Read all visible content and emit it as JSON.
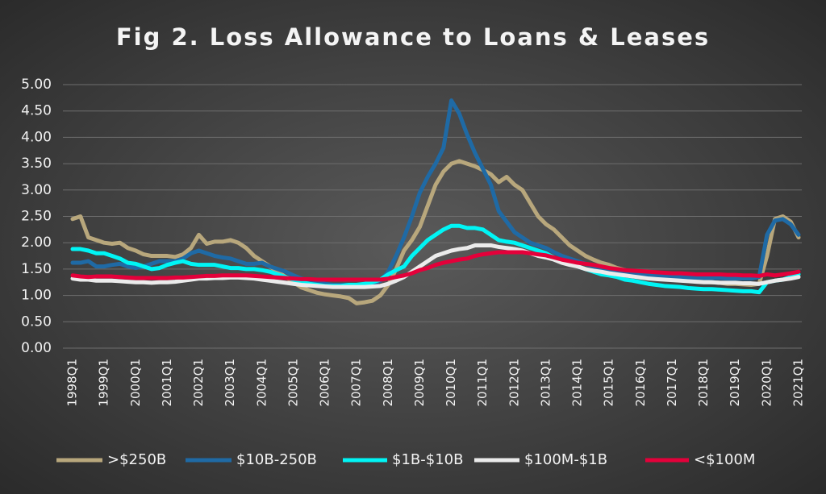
{
  "chart_data": {
    "type": "line",
    "title": "Fig 2. Loss Allowance to Loans & Leases",
    "categories": [
      "1998Q1",
      null,
      null,
      null,
      "1999Q1",
      null,
      null,
      null,
      "2000Q1",
      null,
      null,
      null,
      "2001Q1",
      null,
      null,
      null,
      "2002Q1",
      null,
      null,
      null,
      "2003Q1",
      null,
      null,
      null,
      "2004Q1",
      null,
      null,
      null,
      "2005Q1",
      null,
      null,
      null,
      "2006Q1",
      null,
      null,
      null,
      "2007Q1",
      null,
      null,
      null,
      "2008Q1",
      null,
      null,
      null,
      "2009Q1",
      null,
      null,
      null,
      "2010Q1",
      null,
      null,
      null,
      "2011Q1",
      null,
      null,
      null,
      "2012Q1",
      null,
      null,
      null,
      "2013Q1",
      null,
      null,
      null,
      "2014Q1",
      null,
      null,
      null,
      "2015Q1",
      null,
      null,
      null,
      "2016Q1",
      null,
      null,
      null,
      "2017Q1",
      null,
      null,
      null,
      "2018Q1",
      null,
      null,
      null,
      "2019Q1",
      null,
      null,
      null,
      "2020Q1",
      null,
      null,
      null,
      "2021Q1"
    ],
    "ylim": [
      0,
      5
    ],
    "yticks": [
      {
        "value": 0,
        "label": "0.00"
      },
      {
        "value": 0.5,
        "label": "0.50"
      },
      {
        "value": 1,
        "label": "1.00"
      },
      {
        "value": 1.5,
        "label": "1.50"
      },
      {
        "value": 2,
        "label": "2.00"
      },
      {
        "value": 2.5,
        "label": "2.50"
      },
      {
        "value": 3,
        "label": "3.00"
      },
      {
        "value": 3.5,
        "label": "3.50"
      },
      {
        "value": 4,
        "label": "4.00"
      },
      {
        "value": 4.5,
        "label": "4.50"
      },
      {
        "value": 5,
        "label": "5.00"
      }
    ],
    "grid": true,
    "legend": "bottom",
    "series": [
      {
        "name": ">$250B",
        "color": "#b8a77c",
        "values": [
          2.45,
          2.5,
          2.1,
          2.05,
          2.0,
          1.98,
          2.0,
          1.9,
          1.85,
          1.78,
          1.75,
          1.75,
          1.75,
          1.73,
          1.78,
          1.9,
          2.15,
          1.98,
          2.02,
          2.02,
          2.05,
          2.0,
          1.9,
          1.75,
          1.65,
          1.55,
          1.45,
          1.35,
          1.25,
          1.15,
          1.1,
          1.05,
          1.02,
          1.0,
          0.98,
          0.95,
          0.85,
          0.87,
          0.9,
          1.0,
          1.2,
          1.5,
          1.85,
          2.05,
          2.3,
          2.7,
          3.1,
          3.35,
          3.5,
          3.55,
          3.5,
          3.45,
          3.38,
          3.3,
          3.15,
          3.25,
          3.1,
          3.0,
          2.75,
          2.5,
          2.35,
          2.25,
          2.1,
          1.95,
          1.85,
          1.75,
          1.68,
          1.62,
          1.58,
          1.52,
          1.48,
          1.45,
          1.42,
          1.4,
          1.38,
          1.36,
          1.34,
          1.32,
          1.3,
          1.28,
          1.26,
          1.25,
          1.24,
          1.22,
          1.22,
          1.21,
          1.2,
          1.22,
          1.75,
          2.45,
          2.5,
          2.4,
          2.1
        ]
      },
      {
        "name": "$10B-250B",
        "color": "#1f6aa5",
        "values": [
          1.62,
          1.62,
          1.65,
          1.55,
          1.55,
          1.58,
          1.6,
          1.55,
          1.52,
          1.55,
          1.6,
          1.65,
          1.65,
          1.65,
          1.7,
          1.8,
          1.85,
          1.8,
          1.75,
          1.72,
          1.7,
          1.65,
          1.6,
          1.6,
          1.62,
          1.55,
          1.5,
          1.45,
          1.38,
          1.32,
          1.28,
          1.25,
          1.22,
          1.2,
          1.2,
          1.2,
          1.2,
          1.2,
          1.22,
          1.28,
          1.45,
          1.75,
          2.1,
          2.5,
          2.95,
          3.25,
          3.5,
          3.8,
          4.7,
          4.45,
          4.05,
          3.7,
          3.4,
          3.1,
          2.6,
          2.4,
          2.2,
          2.1,
          2.0,
          1.95,
          1.9,
          1.82,
          1.75,
          1.7,
          1.65,
          1.6,
          1.55,
          1.5,
          1.48,
          1.45,
          1.42,
          1.4,
          1.4,
          1.38,
          1.37,
          1.36,
          1.35,
          1.35,
          1.34,
          1.34,
          1.33,
          1.33,
          1.33,
          1.32,
          1.32,
          1.32,
          1.32,
          1.35,
          2.15,
          2.42,
          2.45,
          2.35,
          2.15
        ]
      },
      {
        "name": "$1B-$10B",
        "color": "#00f5f5",
        "values": [
          1.88,
          1.88,
          1.85,
          1.8,
          1.8,
          1.75,
          1.7,
          1.62,
          1.6,
          1.55,
          1.5,
          1.52,
          1.58,
          1.62,
          1.65,
          1.6,
          1.58,
          1.58,
          1.58,
          1.55,
          1.52,
          1.52,
          1.5,
          1.5,
          1.48,
          1.45,
          1.4,
          1.35,
          1.3,
          1.25,
          1.22,
          1.2,
          1.18,
          1.18,
          1.18,
          1.2,
          1.2,
          1.22,
          1.25,
          1.3,
          1.4,
          1.48,
          1.55,
          1.75,
          1.9,
          2.05,
          2.15,
          2.25,
          2.32,
          2.32,
          2.28,
          2.28,
          2.25,
          2.15,
          2.05,
          2.02,
          2.0,
          1.95,
          1.9,
          1.85,
          1.8,
          1.72,
          1.65,
          1.6,
          1.55,
          1.5,
          1.45,
          1.4,
          1.38,
          1.35,
          1.3,
          1.28,
          1.25,
          1.22,
          1.2,
          1.18,
          1.17,
          1.16,
          1.14,
          1.13,
          1.12,
          1.12,
          1.11,
          1.1,
          1.09,
          1.08,
          1.08,
          1.06,
          1.25,
          1.28,
          1.3,
          1.35,
          1.4
        ]
      },
      {
        "name": "$100M-$1B",
        "color": "#ebebeb",
        "values": [
          1.32,
          1.3,
          1.3,
          1.28,
          1.28,
          1.28,
          1.27,
          1.26,
          1.25,
          1.25,
          1.24,
          1.25,
          1.25,
          1.26,
          1.28,
          1.3,
          1.32,
          1.32,
          1.33,
          1.33,
          1.34,
          1.34,
          1.33,
          1.32,
          1.3,
          1.28,
          1.26,
          1.24,
          1.22,
          1.2,
          1.19,
          1.18,
          1.17,
          1.16,
          1.16,
          1.16,
          1.16,
          1.16,
          1.17,
          1.18,
          1.22,
          1.28,
          1.35,
          1.45,
          1.55,
          1.65,
          1.75,
          1.8,
          1.85,
          1.88,
          1.9,
          1.95,
          1.95,
          1.95,
          1.92,
          1.9,
          1.88,
          1.85,
          1.8,
          1.75,
          1.72,
          1.68,
          1.62,
          1.58,
          1.55,
          1.5,
          1.47,
          1.45,
          1.42,
          1.4,
          1.38,
          1.36,
          1.34,
          1.32,
          1.31,
          1.3,
          1.29,
          1.28,
          1.27,
          1.26,
          1.25,
          1.25,
          1.24,
          1.24,
          1.24,
          1.23,
          1.23,
          1.22,
          1.25,
          1.28,
          1.3,
          1.32,
          1.35
        ]
      },
      {
        "name": "<$100M",
        "color": "#e4003a",
        "values": [
          1.38,
          1.36,
          1.35,
          1.36,
          1.36,
          1.36,
          1.35,
          1.34,
          1.33,
          1.33,
          1.33,
          1.33,
          1.33,
          1.34,
          1.34,
          1.35,
          1.36,
          1.37,
          1.37,
          1.38,
          1.38,
          1.38,
          1.38,
          1.37,
          1.36,
          1.35,
          1.34,
          1.33,
          1.32,
          1.31,
          1.31,
          1.3,
          1.3,
          1.3,
          1.3,
          1.3,
          1.3,
          1.3,
          1.3,
          1.3,
          1.32,
          1.35,
          1.38,
          1.42,
          1.48,
          1.52,
          1.58,
          1.62,
          1.65,
          1.68,
          1.7,
          1.75,
          1.78,
          1.8,
          1.82,
          1.82,
          1.82,
          1.82,
          1.8,
          1.78,
          1.76,
          1.72,
          1.68,
          1.65,
          1.62,
          1.6,
          1.58,
          1.55,
          1.52,
          1.5,
          1.48,
          1.47,
          1.46,
          1.45,
          1.44,
          1.43,
          1.42,
          1.42,
          1.41,
          1.4,
          1.4,
          1.4,
          1.4,
          1.39,
          1.39,
          1.38,
          1.38,
          1.37,
          1.4,
          1.38,
          1.4,
          1.42,
          1.45
        ]
      }
    ]
  }
}
